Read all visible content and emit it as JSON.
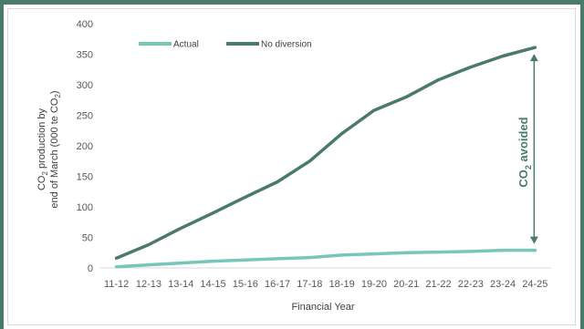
{
  "chart_data": {
    "type": "line",
    "categories": [
      "11-12",
      "12-13",
      "13-14",
      "14-15",
      "15-16",
      "16-17",
      "17-18",
      "18-19",
      "19-20",
      "20-21",
      "21-22",
      "22-23",
      "23-24",
      "24-25"
    ],
    "series": [
      {
        "name": "Actual",
        "color": "#76c7b8",
        "values": [
          2,
          5,
          8,
          11,
          13,
          15,
          17,
          21,
          23,
          25,
          26,
          27,
          29,
          29
        ]
      },
      {
        "name": "No diversion",
        "color": "#4a7a6a",
        "values": [
          16,
          38,
          65,
          90,
          116,
          141,
          175,
          220,
          258,
          280,
          308,
          329,
          347,
          361
        ]
      }
    ],
    "xlabel": "Financial Year",
    "ylabel_line1": "CO",
    "ylabel_line1_sub": "2",
    "ylabel_line1_rest": " production by",
    "ylabel_line2": "end of March (000 te CO",
    "ylabel_line2_sub": "2",
    "ylabel_line2_rest": ")",
    "ylim": [
      0,
      400
    ],
    "yticks": [
      0,
      50,
      100,
      150,
      200,
      250,
      300,
      350,
      400
    ],
    "grid": false,
    "legend_position": "top-left",
    "annotation": {
      "text": "CO",
      "sub": "2",
      "rest": " avoided",
      "color": "#4a7a6a"
    }
  }
}
